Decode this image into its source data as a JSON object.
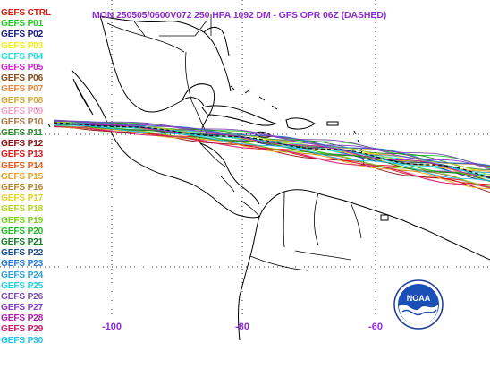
{
  "title": "MON 250505/0600V072  250 HPA 1092 DM - GFS OPR 06Z (DASHED)",
  "legend": [
    {
      "label": "GEFS CTRL",
      "color": "#dd1818"
    },
    {
      "label": "GEFS P01",
      "color": "#22cc22"
    },
    {
      "label": "GEFS P02",
      "color": "#1a1a8c"
    },
    {
      "label": "GEFS P03",
      "color": "#f4ee1a"
    },
    {
      "label": "GEFS P04",
      "color": "#25dede"
    },
    {
      "label": "GEFS P05",
      "color": "#e21ce2"
    },
    {
      "label": "GEFS P06",
      "color": "#8a4a1c"
    },
    {
      "label": "GEFS P07",
      "color": "#e8873e"
    },
    {
      "label": "GEFS P08",
      "color": "#d6a93c"
    },
    {
      "label": "GEFS P09",
      "color": "#f7a3c9"
    },
    {
      "label": "GEFS P10",
      "color": "#aa7a4a"
    },
    {
      "label": "GEFS P11",
      "color": "#2b8a2b"
    },
    {
      "label": "GEFS P12",
      "color": "#8c1414"
    },
    {
      "label": "GEFS P13",
      "color": "#e21a1a"
    },
    {
      "label": "GEFS P14",
      "color": "#ea5b1a"
    },
    {
      "label": "GEFS P15",
      "color": "#e8a21e"
    },
    {
      "label": "GEFS P16",
      "color": "#b8862a"
    },
    {
      "label": "GEFS P17",
      "color": "#e4d41e"
    },
    {
      "label": "GEFS P18",
      "color": "#b4d41e"
    },
    {
      "label": "GEFS P19",
      "color": "#7ad21e"
    },
    {
      "label": "GEFS P20",
      "color": "#22bb22"
    },
    {
      "label": "GEFS P21",
      "color": "#177a2c"
    },
    {
      "label": "GEFS P22",
      "color": "#1a4e8c"
    },
    {
      "label": "GEFS P23",
      "color": "#2a7ad8"
    },
    {
      "label": "GEFS P24",
      "color": "#2aa4e0"
    },
    {
      "label": "GEFS P25",
      "color": "#22d2e2"
    },
    {
      "label": "GEFS P26",
      "color": "#7a4ab4"
    },
    {
      "label": "GEFS P27",
      "color": "#8a3ad0"
    },
    {
      "label": "GEFS P28",
      "color": "#b01ab0"
    },
    {
      "label": "GEFS P29",
      "color": "#d61a6a"
    },
    {
      "label": "GEFS P30",
      "color": "#22c4f4"
    }
  ],
  "lon_labels": [
    "-100",
    "-80",
    "-60"
  ],
  "operational_color": "#111111",
  "label_color": "#8f2bd6",
  "logo_text": "NOAA"
}
